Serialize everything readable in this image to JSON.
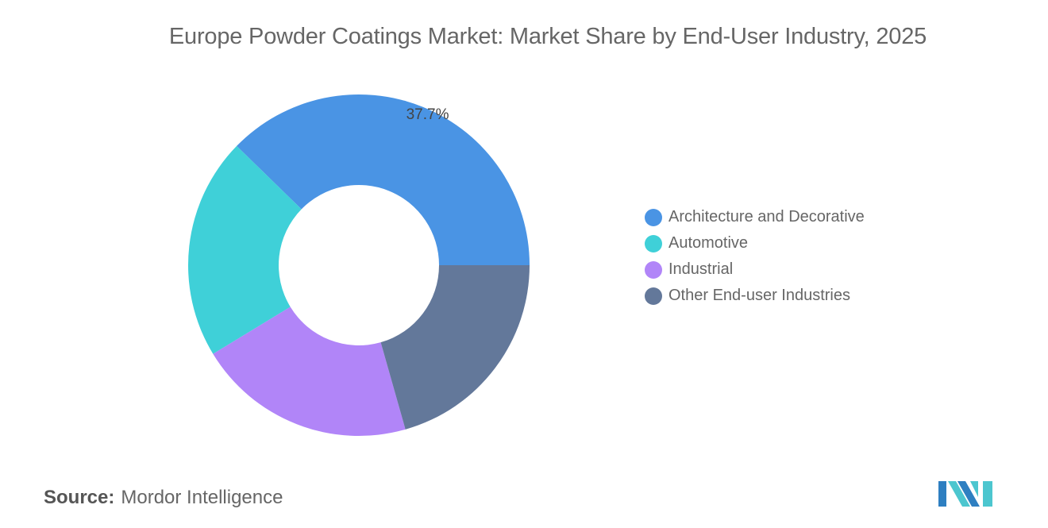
{
  "chart_data": {
    "type": "pie",
    "variant": "donut",
    "title": "Europe Powder Coatings Market: Market Share by End-User Industry, 2025",
    "categories": [
      "Architecture and Decorative",
      "Automotive",
      "Industrial",
      "Other End-user Industries"
    ],
    "values": [
      37.7,
      21.0,
      20.7,
      20.6
    ],
    "unit": "%",
    "data_labels": [
      "37.7%",
      "",
      "",
      ""
    ],
    "colors": [
      "#4a94e4",
      "#3fd0d8",
      "#b185f8",
      "#63789a"
    ],
    "legend_position": "right"
  },
  "source": {
    "label": "Source:",
    "value": "Mordor Intelligence"
  },
  "logo": {
    "text": "Mordor Intelligence",
    "colors": [
      "#2e7fc1",
      "#4cc6cf"
    ]
  }
}
